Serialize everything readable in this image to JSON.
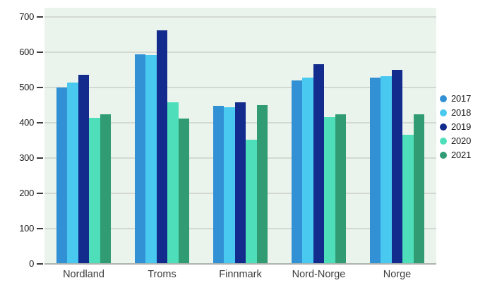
{
  "chart_data": {
    "type": "bar",
    "title": "",
    "categories": [
      "Nordland",
      "Troms",
      "Finnmark",
      "Nord-Norge",
      "Norge"
    ],
    "series": [
      {
        "name": "2017",
        "color": "#3290d5",
        "values": [
          500,
          595,
          449,
          521,
          529
        ]
      },
      {
        "name": "2018",
        "color": "#49c9f0",
        "values": [
          514,
          593,
          444,
          528,
          532
        ]
      },
      {
        "name": "2019",
        "color": "#132b8c",
        "values": [
          537,
          663,
          459,
          566,
          550
        ]
      },
      {
        "name": "2020",
        "color": "#4fdeba",
        "values": [
          415,
          459,
          352,
          416,
          367
        ]
      },
      {
        "name": "2021",
        "color": "#319c74",
        "values": [
          425,
          413,
          451,
          425,
          425
        ]
      }
    ],
    "xlabel": "",
    "ylabel": "",
    "ylim": [
      0,
      700
    ],
    "yticks": [
      0,
      100,
      200,
      300,
      400,
      500,
      600,
      700
    ],
    "grid": true,
    "legend_position": "right",
    "colors": {
      "plot_background": "#eaf4ec",
      "gridline": "#d3d9d2",
      "axis_line": "#adb4ad",
      "tick_mark": "#3b3b3b",
      "tick_label": "#1c1c1c",
      "category_label": "#3d3d3d"
    }
  }
}
